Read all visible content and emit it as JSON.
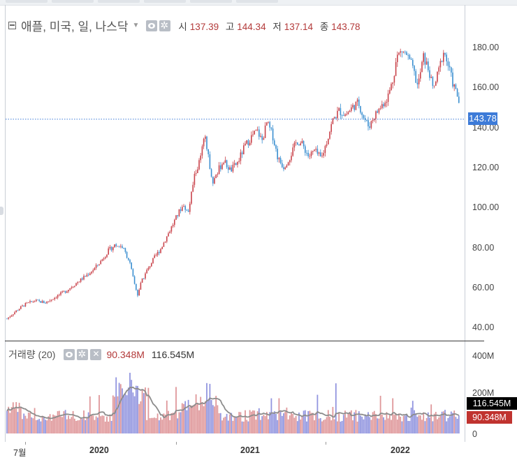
{
  "legend": {
    "title": "애플, 미국, 일, 나스닥",
    "open_label": "시",
    "open": "137.39",
    "high_label": "고",
    "high": "144.34",
    "low_label": "저",
    "low": "137.14",
    "close_label": "종",
    "close": "143.78"
  },
  "volume_legend": {
    "title": "거래량 (20)",
    "volume": "90.348M",
    "ma": "116.545M"
  },
  "price_tag": "143.78",
  "volume_tags": {
    "ma": "116.545M",
    "volume": "90.348M"
  },
  "colors": {
    "up": "#c9424a",
    "down": "#3b8fd0",
    "ma_line": "#8c8c8c",
    "price_line": "#3d7bd8"
  },
  "chart_data": {
    "type": "candlestick",
    "series_price": {
      "ylim": [
        35,
        190
      ],
      "yticks": [
        "40.00",
        "60.00",
        "80.00",
        "100.00",
        "120.00",
        "140.00",
        "160.00",
        "180.00"
      ],
      "close_path": [
        [
          0,
          44
        ],
        [
          10,
          47
        ],
        [
          25,
          51
        ],
        [
          40,
          53
        ],
        [
          55,
          52
        ],
        [
          70,
          55
        ],
        [
          85,
          58
        ],
        [
          100,
          62
        ],
        [
          115,
          66
        ],
        [
          125,
          69
        ],
        [
          135,
          73
        ],
        [
          145,
          78
        ],
        [
          155,
          81
        ],
        [
          165,
          80
        ],
        [
          175,
          73
        ],
        [
          182,
          62
        ],
        [
          187,
          56
        ],
        [
          192,
          62
        ],
        [
          200,
          68
        ],
        [
          210,
          74
        ],
        [
          220,
          79
        ],
        [
          230,
          86
        ],
        [
          240,
          93
        ],
        [
          250,
          100
        ],
        [
          260,
          98
        ],
        [
          268,
          115
        ],
        [
          276,
          123
        ],
        [
          283,
          135
        ],
        [
          288,
          125
        ],
        [
          295,
          112
        ],
        [
          302,
          118
        ],
        [
          310,
          123
        ],
        [
          320,
          118
        ],
        [
          330,
          122
        ],
        [
          340,
          130
        ],
        [
          350,
          135
        ],
        [
          358,
          138
        ],
        [
          365,
          133
        ],
        [
          372,
          142
        ],
        [
          380,
          136
        ],
        [
          388,
          124
        ],
        [
          396,
          120
        ],
        [
          405,
          125
        ],
        [
          415,
          133
        ],
        [
          423,
          131
        ],
        [
          432,
          125
        ],
        [
          440,
          128
        ],
        [
          450,
          124
        ],
        [
          458,
          133
        ],
        [
          466,
          143
        ],
        [
          475,
          148
        ],
        [
          485,
          146
        ],
        [
          495,
          150
        ],
        [
          503,
          152
        ],
        [
          510,
          145
        ],
        [
          518,
          140
        ],
        [
          525,
          145
        ],
        [
          535,
          150
        ],
        [
          545,
          155
        ],
        [
          552,
          163
        ],
        [
          558,
          175
        ],
        [
          565,
          178
        ],
        [
          572,
          176
        ],
        [
          580,
          170
        ],
        [
          588,
          160
        ],
        [
          596,
          175
        ],
        [
          604,
          168
        ],
        [
          610,
          158
        ],
        [
          618,
          168
        ],
        [
          625,
          178
        ],
        [
          632,
          170
        ],
        [
          638,
          162
        ],
        [
          645,
          155
        ],
        [
          650,
          148
        ],
        [
          654,
          140
        ],
        [
          658,
          143
        ]
      ],
      "current": 143.78
    },
    "series_volume": {
      "ylim": [
        0,
        450
      ],
      "yticks": [
        "0",
        "200M",
        "400M"
      ],
      "current_volume": 90.348,
      "current_ma": 116.545
    },
    "x_ticks": [
      {
        "label": "7월",
        "x": 0.0,
        "bold": false
      },
      {
        "label": "2020",
        "bold": true
      },
      {
        "label": "2021",
        "bold": true
      },
      {
        "label": "2022",
        "bold": true
      }
    ]
  }
}
